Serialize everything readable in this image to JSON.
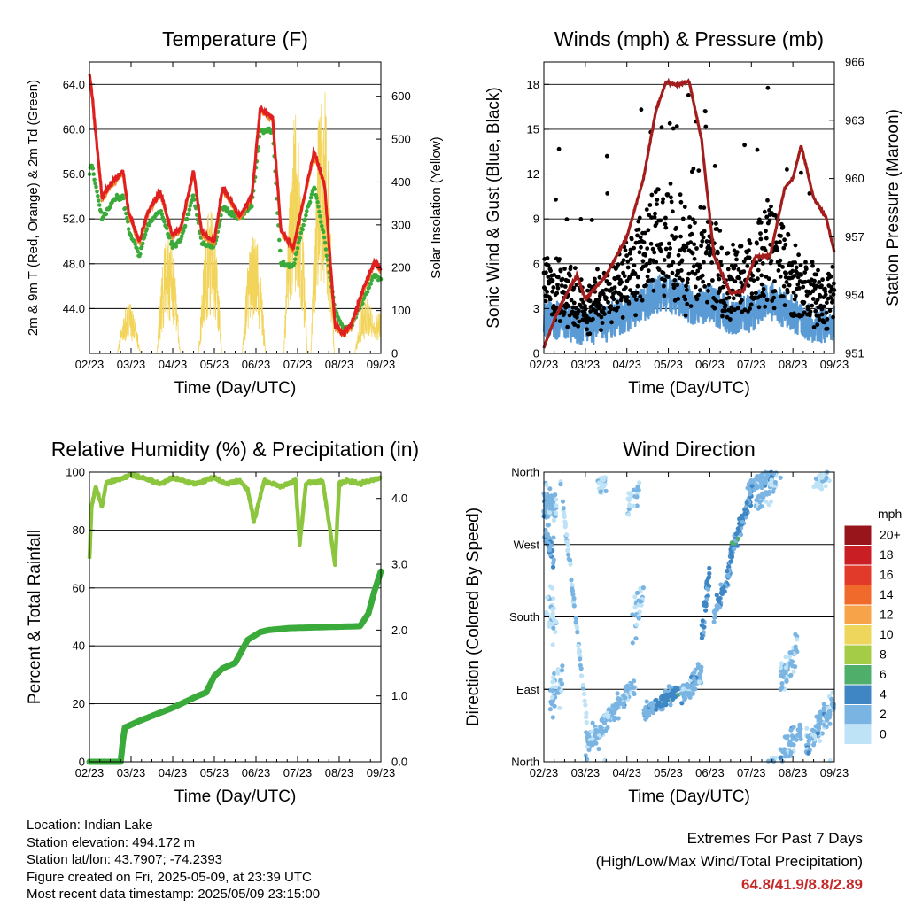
{
  "panels": {
    "temperature": {
      "title": "Temperature (F)",
      "ylabel_left": "2m & 9m T (Red, Orange) & 2m Td (Green)",
      "ylabel_right": "Solar Insolation (Yellow)",
      "xlabel": "Time (Day/UTC)"
    },
    "winds": {
      "title": "Winds (mph) & Pressure (mb)",
      "ylabel_left": "Sonic Wind & Gust (Blue, Black)",
      "ylabel_right": "Station Pressure (Maroon)",
      "xlabel": "Time (Day/UTC)"
    },
    "humidity": {
      "title": "Relative Humidity (%) & Precipitation (in)",
      "ylabel_left": "Percent & Total Rainfall",
      "xlabel": "Time (Day/UTC)"
    },
    "direction": {
      "title": "Wind Direction",
      "ylabel_left": "Direction (Colored By Speed)",
      "xlabel": "Time (Day/UTC)"
    }
  },
  "x_ticks": [
    "02/23",
    "03/23",
    "04/23",
    "05/23",
    "06/23",
    "07/23",
    "08/23",
    "09/23"
  ],
  "colorbar": {
    "unit": "mph",
    "labels": [
      "20+",
      "18",
      "16",
      "14",
      "12",
      "10",
      "8",
      "6",
      "4",
      "2",
      "0"
    ],
    "colors": [
      "#99151c",
      "#c81e24",
      "#e23a2a",
      "#f06a2c",
      "#f7a34a",
      "#eed55b",
      "#a5cc47",
      "#4fae6a",
      "#3f86c4",
      "#7ab4e2",
      "#bfe3f6"
    ]
  },
  "info": {
    "location": "Location: Indian Lake",
    "elevation": "Station elevation: 494.172 m",
    "latlon": "Station lat/lon: 43.7907; -74.2393",
    "created": "Figure created on Fri, 2025-05-09, at 23:39 UTC",
    "recent": "Most recent data timestamp: 2025/05/09 23:15:00"
  },
  "extremes": {
    "title": "Extremes For Past 7 Days",
    "subtitle": "(High/Low/Max Wind/Total Precipitation)",
    "values": "64.8/41.9/8.8/2.89"
  },
  "chart_data": [
    {
      "type": "line",
      "title": "Temperature (F)",
      "xlabel": "Time (Day/UTC)",
      "ylabel": "2m & 9m T (Red, Orange) & 2m Td (Green)",
      "y2label": "Solar Insolation (Yellow)",
      "ylim": [
        40.0,
        66.0
      ],
      "y_ticks": [
        44.0,
        48.0,
        52.0,
        56.0,
        60.0,
        64.0
      ],
      "y2lim": [
        0,
        680
      ],
      "y2_ticks": [
        0,
        100,
        200,
        300,
        400,
        500,
        600
      ],
      "x": [
        0,
        0.5,
        1,
        1.5,
        2,
        2.5,
        3,
        3.5,
        4,
        4.5,
        5,
        5.5,
        6,
        6.5,
        7
      ],
      "series": [
        {
          "name": "2m T",
          "color": "#e02020",
          "values": [
            65.0,
            54.0,
            56.3,
            50.0,
            50.5,
            56.3,
            50.0,
            52.5,
            54.6,
            62.2,
            49.4,
            55.4,
            42.5,
            41.8,
            47.8
          ]
        },
        {
          "name": "2m Td",
          "color": "#3aab3a",
          "values": [
            57.0,
            51.8,
            54.0,
            48.8,
            49.5,
            54.4,
            48.9,
            52.0,
            53.0,
            60.6,
            48.0,
            52.8,
            43.0,
            42.0,
            46.9
          ]
        },
        {
          "name": "Solar Insolation",
          "color": "#f3d45a",
          "axis": "right",
          "values": [
            0,
            100,
            0,
            300,
            0,
            350,
            0,
            300,
            0,
            450,
            0,
            650,
            0,
            0,
            100
          ]
        }
      ]
    },
    {
      "type": "line",
      "title": "Winds (mph) & Pressure (mb)",
      "xlabel": "Time (Day/UTC)",
      "ylabel": "Sonic Wind & Gust (Blue, Black)",
      "y2label": "Station Pressure (Maroon)",
      "ylim": [
        0,
        19.5
      ],
      "y_ticks": [
        0,
        3,
        6,
        9,
        12,
        15,
        18
      ],
      "y2lim": [
        951,
        966
      ],
      "y2_ticks": [
        951,
        954,
        957,
        960,
        963,
        966
      ],
      "x": [
        0,
        0.5,
        1,
        1.5,
        2,
        2.5,
        3,
        3.5,
        4,
        4.5,
        5,
        5.5,
        6,
        6.5,
        7
      ],
      "series": [
        {
          "name": "Station Pressure",
          "color": "#a31d1d",
          "axis": "right",
          "values": [
            951.3,
            954.3,
            953.8,
            955.0,
            959.5,
            965.0,
            964.5,
            956.0,
            954.1,
            956.0,
            956.0,
            960.1,
            961.5,
            959.0,
            956.5
          ]
        },
        {
          "name": "Gust",
          "color": "#000000",
          "values": [
            7,
            6,
            5,
            6,
            8,
            12,
            11,
            10,
            8,
            9,
            8,
            11,
            7,
            6,
            6
          ]
        },
        {
          "name": "Sonic Wind",
          "color": "#5b9bd5",
          "values": [
            3,
            2,
            1.5,
            2,
            3,
            4,
            4,
            3,
            3,
            3,
            2.5,
            4,
            2.5,
            2,
            2
          ]
        }
      ]
    },
    {
      "type": "line",
      "title": "Relative Humidity (%) & Precipitation (in)",
      "xlabel": "Time (Day/UTC)",
      "ylabel": "Percent & Total Rainfall",
      "ylim": [
        0,
        100
      ],
      "y_ticks": [
        0,
        20,
        40,
        60,
        80,
        100
      ],
      "y2lim": [
        0.0,
        4.4
      ],
      "y2_ticks": [
        0.0,
        1.0,
        2.0,
        3.0,
        4.0
      ],
      "x": [
        0,
        0.5,
        1,
        1.5,
        2,
        2.5,
        3,
        3.5,
        4,
        4.5,
        5,
        5.5,
        6,
        6.5,
        7
      ],
      "series": [
        {
          "name": "Relative Humidity",
          "color": "#8cc63f",
          "values": [
            70,
            96,
            97,
            99,
            96,
            98,
            95,
            98,
            98,
            90,
            97,
            74,
            69,
            97,
            98
          ]
        },
        {
          "name": "Total Precipitation",
          "color": "#3aab3a",
          "axis": "right",
          "values": [
            0.0,
            0.0,
            0.53,
            0.65,
            0.82,
            0.93,
            1.06,
            1.42,
            1.95,
            2.02,
            2.03,
            2.05,
            2.06,
            2.06,
            2.89
          ]
        }
      ]
    },
    {
      "type": "scatter",
      "title": "Wind Direction",
      "xlabel": "Time (Day/UTC)",
      "ylabel": "Direction (Colored By Speed)",
      "y_ticks": [
        "North",
        "East",
        "South",
        "West",
        "North"
      ],
      "x": [
        0,
        1,
        2,
        3,
        3.5,
        4,
        4.5,
        5,
        5.3,
        6,
        6.5,
        7
      ],
      "series": [
        {
          "name": "Wind Direction",
          "values": [
            300,
            30,
            110,
            105,
            250,
            215,
            250,
            330,
            350,
            70,
            100,
            20
          ]
        }
      ]
    }
  ]
}
